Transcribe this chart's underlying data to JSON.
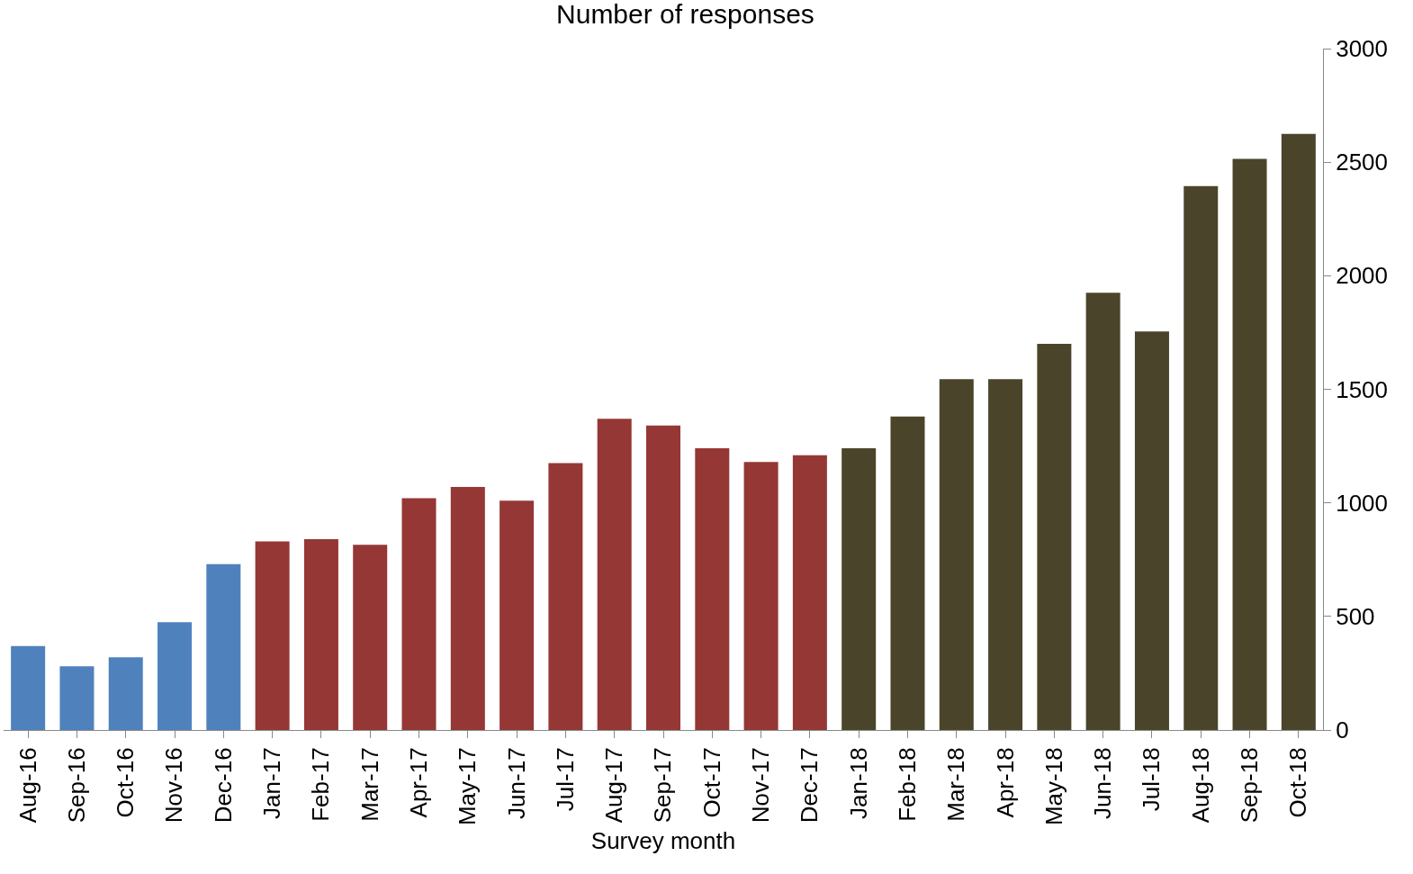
{
  "chart_data": {
    "type": "bar",
    "title": "Number of responses",
    "xlabel": "Survey month",
    "categories": [
      "Aug-16",
      "Sep-16",
      "Oct-16",
      "Nov-16",
      "Dec-16",
      "Jan-17",
      "Feb-17",
      "Mar-17",
      "Apr-17",
      "May-17",
      "Jun-17",
      "Jul-17",
      "Aug-17",
      "Sep-17",
      "Oct-17",
      "Nov-17",
      "Dec-17",
      "Jan-18",
      "Feb-18",
      "Mar-18",
      "Apr-18",
      "May-18",
      "Jun-18",
      "Jul-18",
      "Aug-18",
      "Sep-18",
      "Oct-18"
    ],
    "values": [
      370,
      280,
      320,
      475,
      730,
      830,
      840,
      815,
      1020,
      1070,
      1010,
      1175,
      1370,
      1340,
      1240,
      1180,
      1210,
      1240,
      1380,
      1545,
      1545,
      1700,
      1925,
      1755,
      2395,
      2515,
      2625
    ],
    "colors": [
      "#4f81bd",
      "#4f81bd",
      "#4f81bd",
      "#4f81bd",
      "#4f81bd",
      "#953735",
      "#953735",
      "#953735",
      "#953735",
      "#953735",
      "#953735",
      "#953735",
      "#953735",
      "#953735",
      "#953735",
      "#953735",
      "#953735",
      "#4a452a",
      "#4a452a",
      "#4a452a",
      "#4a452a",
      "#4a452a",
      "#4a452a",
      "#4a452a",
      "#4a452a",
      "#4a452a",
      "#4a452a"
    ],
    "ylim": [
      0,
      3000
    ],
    "yticks": [
      0,
      500,
      1000,
      1500,
      2000,
      2500,
      3000
    ]
  }
}
